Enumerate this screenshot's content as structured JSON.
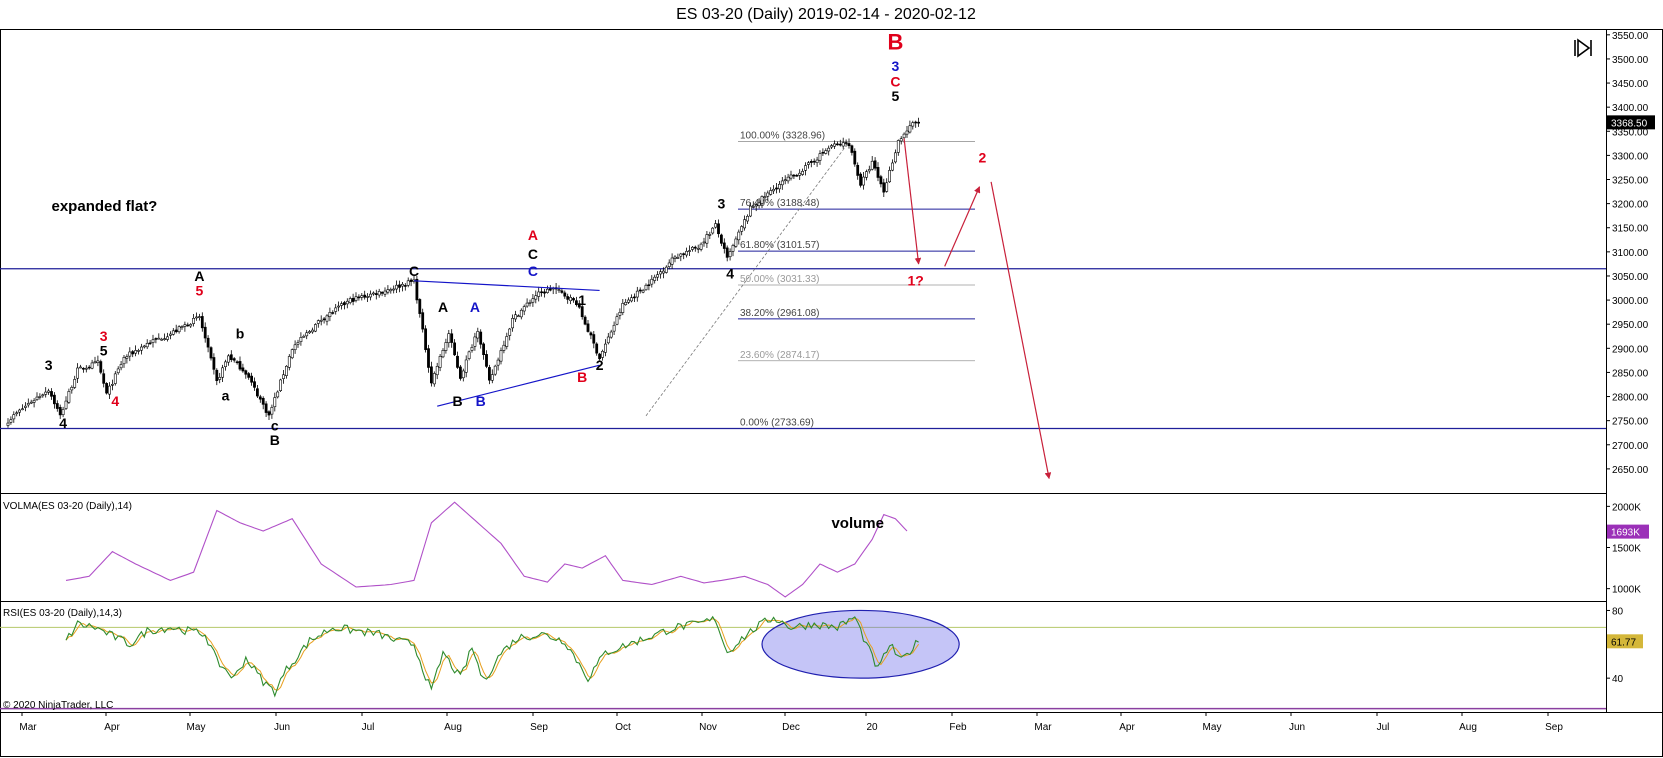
{
  "window": {
    "title": "ES 03-20 (Daily)  2019-02-14 - 2020-02-12"
  },
  "footer": {
    "copyright": "© 2020 NinjaTrader, LLC"
  },
  "colors": {
    "up": "#ffffff",
    "down": "#000000",
    "level": "#1f1f9a",
    "red": "#e0001b",
    "blue": "#1414c8",
    "volma": "#b050c8",
    "rsi": "#2e8b2e",
    "rsiavg": "#e8a020",
    "arrow": "#c8203a"
  },
  "icons": {
    "collapse": "collapse-panel-icon"
  },
  "chart_data": [
    {
      "type": "candlestick",
      "panel": "price",
      "title": "ES 03-20 (Daily)  2019-02-14 - 2020-02-12",
      "ylim": [
        2600,
        3560
      ],
      "y_ticks": [
        "3550.00",
        "3500.00",
        "3450.00",
        "3400.00",
        "3350.00",
        "3300.00",
        "3250.00",
        "3200.00",
        "3150.00",
        "3100.00",
        "3050.00",
        "3000.00",
        "2950.00",
        "2900.00",
        "2850.00",
        "2800.00",
        "2750.00",
        "2700.00",
        "2650.00"
      ],
      "x_ticks": [
        "Mar",
        "Apr",
        "May",
        "Jun",
        "Jul",
        "Aug",
        "Sep",
        "Oct",
        "Nov",
        "Dec",
        "20",
        "Feb",
        "Mar",
        "Apr",
        "May",
        "Jun",
        "Jul",
        "Aug",
        "Sep"
      ],
      "last_price": "3368.50",
      "anchors": [
        {
          "d": 0,
          "p": 2750
        },
        {
          "d": 8,
          "p": 2790
        },
        {
          "d": 14,
          "p": 2815
        },
        {
          "d": 18,
          "p": 2760
        },
        {
          "d": 24,
          "p": 2855
        },
        {
          "d": 31,
          "p": 2870
        },
        {
          "d": 34,
          "p": 2805
        },
        {
          "d": 40,
          "p": 2880
        },
        {
          "d": 48,
          "p": 2910
        },
        {
          "d": 56,
          "p": 2930
        },
        {
          "d": 66,
          "p": 2965
        },
        {
          "d": 72,
          "p": 2830
        },
        {
          "d": 76,
          "p": 2885
        },
        {
          "d": 82,
          "p": 2850
        },
        {
          "d": 90,
          "p": 2760
        },
        {
          "d": 98,
          "p": 2900
        },
        {
          "d": 108,
          "p": 2960
        },
        {
          "d": 118,
          "p": 3000
        },
        {
          "d": 130,
          "p": 3020
        },
        {
          "d": 140,
          "p": 3040
        },
        {
          "d": 146,
          "p": 2830
        },
        {
          "d": 152,
          "p": 2930
        },
        {
          "d": 156,
          "p": 2840
        },
        {
          "d": 162,
          "p": 2940
        },
        {
          "d": 166,
          "p": 2830
        },
        {
          "d": 174,
          "p": 2960
        },
        {
          "d": 182,
          "p": 3010
        },
        {
          "d": 188,
          "p": 3025
        },
        {
          "d": 196,
          "p": 2995
        },
        {
          "d": 204,
          "p": 2880
        },
        {
          "d": 212,
          "p": 2990
        },
        {
          "d": 222,
          "p": 3040
        },
        {
          "d": 230,
          "p": 3090
        },
        {
          "d": 238,
          "p": 3110
        },
        {
          "d": 244,
          "p": 3155
        },
        {
          "d": 248,
          "p": 3085
        },
        {
          "d": 256,
          "p": 3190
        },
        {
          "d": 266,
          "p": 3240
        },
        {
          "d": 274,
          "p": 3270
        },
        {
          "d": 284,
          "p": 3320
        },
        {
          "d": 290,
          "p": 3325
        },
        {
          "d": 294,
          "p": 3240
        },
        {
          "d": 298,
          "p": 3285
        },
        {
          "d": 302,
          "p": 3225
        },
        {
          "d": 307,
          "p": 3330
        },
        {
          "d": 312,
          "p": 3365
        },
        {
          "d": 314,
          "p": 3368.5
        }
      ],
      "horizontal_levels": [
        3065,
        2733.69
      ],
      "fibonacci": [
        {
          "label": "100.00% (3328.96)",
          "value": 3328.96
        },
        {
          "label": "76.40% (3188.48)",
          "value": 3188.48
        },
        {
          "label": "61.80% (3101.57)",
          "value": 3101.57
        },
        {
          "label": "50.00% (3031.33)",
          "value": 3031.33
        },
        {
          "label": "38.20% (2961.08)",
          "value": 2961.08
        },
        {
          "label": "23.60% (2874.17)",
          "value": 2874.17
        },
        {
          "label": "0.00% (2733.69)",
          "value": 2733.69
        }
      ],
      "annotations": [
        {
          "text": "expanded flat?",
          "d": 15,
          "p": 3185,
          "color": "black"
        },
        {
          "text": "3",
          "d": 14,
          "p": 2855,
          "color": "black"
        },
        {
          "text": "4",
          "d": 19,
          "p": 2735,
          "color": "black"
        },
        {
          "text": "3",
          "d": 33,
          "p": 2915,
          "color": "red"
        },
        {
          "text": "5",
          "d": 33,
          "p": 2885,
          "color": "black"
        },
        {
          "text": "4",
          "d": 37,
          "p": 2780,
          "color": "red"
        },
        {
          "text": "A",
          "d": 66,
          "p": 3040,
          "color": "black"
        },
        {
          "text": "5",
          "d": 66,
          "p": 3010,
          "color": "red"
        },
        {
          "text": "b",
          "d": 80,
          "p": 2920,
          "color": "black"
        },
        {
          "text": "a",
          "d": 75,
          "p": 2792,
          "color": "black"
        },
        {
          "text": "c",
          "d": 92,
          "p": 2730,
          "color": "black"
        },
        {
          "text": "B",
          "d": 92,
          "p": 2700,
          "color": "black"
        },
        {
          "text": "C",
          "d": 140,
          "p": 3050,
          "color": "black"
        },
        {
          "text": "A",
          "d": 150,
          "p": 2975,
          "color": "black"
        },
        {
          "text": "A",
          "d": 161,
          "p": 2975,
          "color": "blue"
        },
        {
          "text": "B",
          "d": 155,
          "p": 2780,
          "color": "black"
        },
        {
          "text": "B",
          "d": 163,
          "p": 2780,
          "color": "blue"
        },
        {
          "text": "A",
          "d": 181,
          "p": 3125,
          "color": "red"
        },
        {
          "text": "C",
          "d": 181,
          "p": 3085,
          "color": "black"
        },
        {
          "text": "C",
          "d": 181,
          "p": 3050,
          "color": "blue"
        },
        {
          "text": "1",
          "d": 198,
          "p": 2990,
          "color": "black"
        },
        {
          "text": "2",
          "d": 204,
          "p": 2855,
          "color": "black"
        },
        {
          "text": "B",
          "d": 198,
          "p": 2830,
          "color": "red"
        },
        {
          "text": "3",
          "d": 246,
          "p": 3190,
          "color": "black"
        },
        {
          "text": "4",
          "d": 249,
          "p": 3045,
          "color": "black"
        },
        {
          "text": "B",
          "d": 306,
          "p": 3520,
          "color": "red"
        },
        {
          "text": "3",
          "d": 306,
          "p": 3475,
          "color": "blue"
        },
        {
          "text": "C",
          "d": 306,
          "p": 3443,
          "color": "red"
        },
        {
          "text": "5",
          "d": 306,
          "p": 3413,
          "color": "black"
        },
        {
          "text": "2",
          "d": 336,
          "p": 3285,
          "color": "red"
        },
        {
          "text": "1?",
          "d": 313,
          "p": 3030,
          "color": "red"
        }
      ],
      "wave_lines": [
        {
          "from": {
            "d": 140,
            "p": 3040
          },
          "to": {
            "d": 204,
            "p": 3020
          },
          "color": "blue"
        },
        {
          "from": {
            "d": 148,
            "p": 2780
          },
          "to": {
            "d": 204,
            "p": 2865
          },
          "color": "blue"
        },
        {
          "from": {
            "d": 220,
            "p": 2760
          },
          "to": {
            "d": 290,
            "p": 3328
          },
          "color": "dashed"
        }
      ],
      "arrows": [
        {
          "from": {
            "d": 309,
            "p": 3335
          },
          "to": {
            "d": 314,
            "p": 3075
          }
        },
        {
          "from": {
            "d": 323,
            "p": 3070
          },
          "to": {
            "d": 335,
            "p": 3235
          }
        },
        {
          "from": {
            "d": 339,
            "p": 3245
          },
          "to": {
            "d": 359,
            "p": 2630
          }
        }
      ]
    },
    {
      "type": "line",
      "panel": "volma",
      "label": "VOLMA(ES 03-20 (Daily),14)",
      "annotation": "volume",
      "ylim": [
        850,
        2150
      ],
      "y_ticks": [
        "2000K",
        "1500K",
        "1000K"
      ],
      "last_value": "1693K",
      "anchors": [
        {
          "d": 20,
          "v": 1100
        },
        {
          "d": 28,
          "v": 1150
        },
        {
          "d": 36,
          "v": 1450
        },
        {
          "d": 44,
          "v": 1300
        },
        {
          "d": 56,
          "v": 1100
        },
        {
          "d": 64,
          "v": 1200
        },
        {
          "d": 72,
          "v": 1950
        },
        {
          "d": 80,
          "v": 1800
        },
        {
          "d": 88,
          "v": 1700
        },
        {
          "d": 98,
          "v": 1850
        },
        {
          "d": 108,
          "v": 1300
        },
        {
          "d": 120,
          "v": 1020
        },
        {
          "d": 132,
          "v": 1050
        },
        {
          "d": 140,
          "v": 1100
        },
        {
          "d": 146,
          "v": 1800
        },
        {
          "d": 154,
          "v": 2050
        },
        {
          "d": 162,
          "v": 1800
        },
        {
          "d": 170,
          "v": 1550
        },
        {
          "d": 178,
          "v": 1150
        },
        {
          "d": 186,
          "v": 1080
        },
        {
          "d": 192,
          "v": 1300
        },
        {
          "d": 198,
          "v": 1250
        },
        {
          "d": 206,
          "v": 1400
        },
        {
          "d": 212,
          "v": 1100
        },
        {
          "d": 222,
          "v": 1050
        },
        {
          "d": 232,
          "v": 1150
        },
        {
          "d": 240,
          "v": 1070
        },
        {
          "d": 246,
          "v": 1100
        },
        {
          "d": 254,
          "v": 1150
        },
        {
          "d": 262,
          "v": 1050
        },
        {
          "d": 268,
          "v": 900
        },
        {
          "d": 274,
          "v": 1050
        },
        {
          "d": 280,
          "v": 1300
        },
        {
          "d": 286,
          "v": 1200
        },
        {
          "d": 292,
          "v": 1300
        },
        {
          "d": 298,
          "v": 1600
        },
        {
          "d": 302,
          "v": 1900
        },
        {
          "d": 306,
          "v": 1850
        },
        {
          "d": 310,
          "v": 1700
        }
      ]
    },
    {
      "type": "line",
      "panel": "rsi",
      "label": "RSI(ES 03-20 (Daily),14,3)",
      "ylim": [
        20,
        85
      ],
      "y_ticks": [
        "80",
        "40"
      ],
      "threshold": 70,
      "last_value": "61.77",
      "highlight_ellipse": {
        "d_from": 260,
        "d_to": 328,
        "v_from": 40,
        "v_to": 80
      },
      "anchors": [
        {
          "d": 20,
          "v": 62
        },
        {
          "d": 24,
          "v": 72
        },
        {
          "d": 30,
          "v": 70
        },
        {
          "d": 36,
          "v": 65
        },
        {
          "d": 42,
          "v": 60
        },
        {
          "d": 48,
          "v": 68
        },
        {
          "d": 56,
          "v": 70
        },
        {
          "d": 62,
          "v": 68
        },
        {
          "d": 68,
          "v": 66
        },
        {
          "d": 72,
          "v": 50
        },
        {
          "d": 78,
          "v": 40
        },
        {
          "d": 82,
          "v": 52
        },
        {
          "d": 88,
          "v": 38
        },
        {
          "d": 92,
          "v": 32
        },
        {
          "d": 96,
          "v": 45
        },
        {
          "d": 104,
          "v": 62
        },
        {
          "d": 112,
          "v": 70
        },
        {
          "d": 120,
          "v": 68
        },
        {
          "d": 128,
          "v": 66
        },
        {
          "d": 134,
          "v": 62
        },
        {
          "d": 140,
          "v": 60
        },
        {
          "d": 146,
          "v": 32
        },
        {
          "d": 150,
          "v": 55
        },
        {
          "d": 156,
          "v": 40
        },
        {
          "d": 160,
          "v": 58
        },
        {
          "d": 164,
          "v": 38
        },
        {
          "d": 170,
          "v": 55
        },
        {
          "d": 176,
          "v": 64
        },
        {
          "d": 184,
          "v": 66
        },
        {
          "d": 192,
          "v": 62
        },
        {
          "d": 200,
          "v": 40
        },
        {
          "d": 206,
          "v": 55
        },
        {
          "d": 214,
          "v": 60
        },
        {
          "d": 222,
          "v": 65
        },
        {
          "d": 230,
          "v": 70
        },
        {
          "d": 238,
          "v": 72
        },
        {
          "d": 244,
          "v": 75
        },
        {
          "d": 248,
          "v": 55
        },
        {
          "d": 252,
          "v": 62
        },
        {
          "d": 258,
          "v": 70
        },
        {
          "d": 264,
          "v": 76
        },
        {
          "d": 270,
          "v": 70
        },
        {
          "d": 278,
          "v": 72
        },
        {
          "d": 286,
          "v": 70
        },
        {
          "d": 292,
          "v": 76
        },
        {
          "d": 296,
          "v": 60
        },
        {
          "d": 300,
          "v": 45
        },
        {
          "d": 304,
          "v": 60
        },
        {
          "d": 308,
          "v": 50
        },
        {
          "d": 314,
          "v": 62
        }
      ]
    }
  ]
}
